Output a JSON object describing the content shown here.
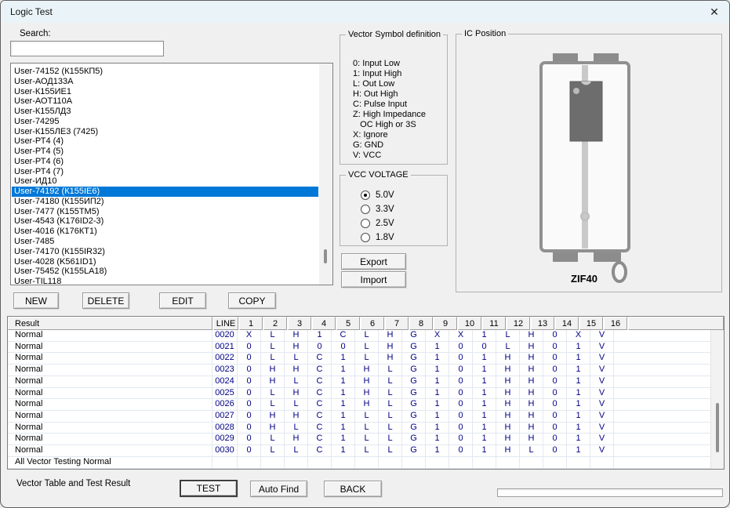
{
  "window": {
    "title": "Logic Test",
    "close_icon": "✕"
  },
  "colors": {
    "selection": "#0078d7",
    "vector_text": "#000086",
    "titlebar": "#eaf4f8"
  },
  "search": {
    "label": "Search:",
    "value": ""
  },
  "chip_list": {
    "selected_index": 12,
    "items": [
      "User-74152 (К155КП5)",
      "User-АОД133А",
      "User-К155ИЕ1",
      "User-АОТ110А",
      "User-К155ЛД3",
      "User-74295",
      "User-К155ЛЕ3 (7425)",
      "User-РТ4 (4)",
      "User-РТ4 (5)",
      "User-РТ4 (6)",
      "User-РТ4 (7)",
      "User-ИД10",
      "User-74192 (К155IE6)",
      "User-74180 (К155ИП2)",
      "User-7477 (К155ТМ5)",
      "User-4543 (K176ID2-3)",
      "User-4016 (К176КТ1)",
      "User-7485",
      "User-74170 (К155IR32)",
      "User-4028 (K561ID1)",
      "User-75452 (К155LA18)",
      "User-TIL118"
    ]
  },
  "list_actions": {
    "new": "NEW",
    "delete": "DELETE",
    "edit": "EDIT",
    "copy": "COPY"
  },
  "vector_symbols": {
    "title": "Vector Symbol definition",
    "lines": [
      "0: Input Low",
      "1: Input High",
      "L: Out Low",
      "H: Out High",
      "C: Pulse Input",
      "Z: High Impedance",
      "   OC High or 3S",
      "X: Ignore",
      "G: GND",
      "V: VCC"
    ]
  },
  "vcc_voltage": {
    "title": "VCC VOLTAGE",
    "options": [
      {
        "label": "5.0V",
        "selected": true
      },
      {
        "label": "3.3V",
        "selected": false
      },
      {
        "label": "2.5V",
        "selected": false
      },
      {
        "label": "1.8V",
        "selected": false
      }
    ]
  },
  "transfer": {
    "export_label": "Export",
    "import_label": "Import"
  },
  "ic_position": {
    "title": "IC Position",
    "socket_label": "ZIF40"
  },
  "vector_table": {
    "columns": [
      "Result",
      "LINE",
      "1",
      "2",
      "3",
      "4",
      "5",
      "6",
      "7",
      "8",
      "9",
      "10",
      "11",
      "12",
      "13",
      "14",
      "15",
      "16"
    ],
    "rows": [
      {
        "result": "Normal",
        "line": "0020",
        "values": [
          "X",
          "L",
          "H",
          "1",
          "C",
          "L",
          "H",
          "G",
          "X",
          "X",
          "1",
          "L",
          "H",
          "0",
          "X",
          "V"
        ]
      },
      {
        "result": "Normal",
        "line": "0021",
        "values": [
          "0",
          "L",
          "H",
          "0",
          "0",
          "L",
          "H",
          "G",
          "1",
          "0",
          "0",
          "L",
          "H",
          "0",
          "1",
          "V"
        ]
      },
      {
        "result": "Normal",
        "line": "0022",
        "values": [
          "0",
          "L",
          "L",
          "C",
          "1",
          "L",
          "H",
          "G",
          "1",
          "0",
          "1",
          "H",
          "H",
          "0",
          "1",
          "V"
        ]
      },
      {
        "result": "Normal",
        "line": "0023",
        "values": [
          "0",
          "H",
          "H",
          "C",
          "1",
          "H",
          "L",
          "G",
          "1",
          "0",
          "1",
          "H",
          "H",
          "0",
          "1",
          "V"
        ]
      },
      {
        "result": "Normal",
        "line": "0024",
        "values": [
          "0",
          "H",
          "L",
          "C",
          "1",
          "H",
          "L",
          "G",
          "1",
          "0",
          "1",
          "H",
          "H",
          "0",
          "1",
          "V"
        ]
      },
      {
        "result": "Normal",
        "line": "0025",
        "values": [
          "0",
          "L",
          "H",
          "C",
          "1",
          "H",
          "L",
          "G",
          "1",
          "0",
          "1",
          "H",
          "H",
          "0",
          "1",
          "V"
        ]
      },
      {
        "result": "Normal",
        "line": "0026",
        "values": [
          "0",
          "L",
          "L",
          "C",
          "1",
          "H",
          "L",
          "G",
          "1",
          "0",
          "1",
          "H",
          "H",
          "0",
          "1",
          "V"
        ]
      },
      {
        "result": "Normal",
        "line": "0027",
        "values": [
          "0",
          "H",
          "H",
          "C",
          "1",
          "L",
          "L",
          "G",
          "1",
          "0",
          "1",
          "H",
          "H",
          "0",
          "1",
          "V"
        ]
      },
      {
        "result": "Normal",
        "line": "0028",
        "values": [
          "0",
          "H",
          "L",
          "C",
          "1",
          "L",
          "L",
          "G",
          "1",
          "0",
          "1",
          "H",
          "H",
          "0",
          "1",
          "V"
        ]
      },
      {
        "result": "Normal",
        "line": "0029",
        "values": [
          "0",
          "L",
          "H",
          "C",
          "1",
          "L",
          "L",
          "G",
          "1",
          "0",
          "1",
          "H",
          "H",
          "0",
          "1",
          "V"
        ]
      },
      {
        "result": "Normal",
        "line": "0030",
        "values": [
          "0",
          "L",
          "L",
          "C",
          "1",
          "L",
          "L",
          "G",
          "1",
          "0",
          "1",
          "H",
          "L",
          "0",
          "1",
          "V"
        ]
      }
    ],
    "summary": "All Vector Testing Normal"
  },
  "footer": {
    "caption": "Vector Table and Test Result",
    "test_label": "TEST",
    "auto_find_label": "Auto Find",
    "back_label": "BACK"
  }
}
